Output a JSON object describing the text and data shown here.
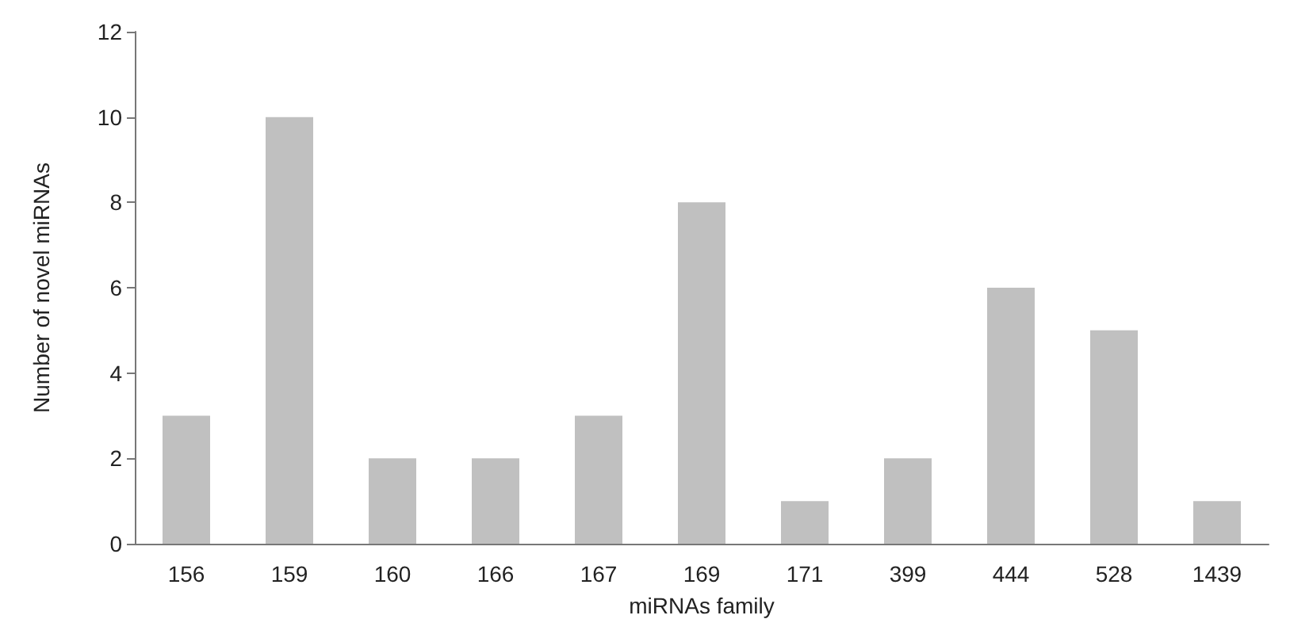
{
  "chart_data": {
    "type": "bar",
    "xlabel": "miRNAs family",
    "ylabel": "Number of novel miRNAs",
    "categories": [
      "156",
      "159",
      "160",
      "166",
      "167",
      "169",
      "171",
      "399",
      "444",
      "528",
      "1439"
    ],
    "values": [
      3,
      10,
      2,
      2,
      3,
      8,
      1,
      2,
      6,
      5,
      1
    ],
    "color": "#c0c0c0",
    "ylim": [
      0,
      12
    ],
    "yticks": [
      0,
      2,
      4,
      6,
      8,
      10,
      12
    ],
    "grid": false
  }
}
